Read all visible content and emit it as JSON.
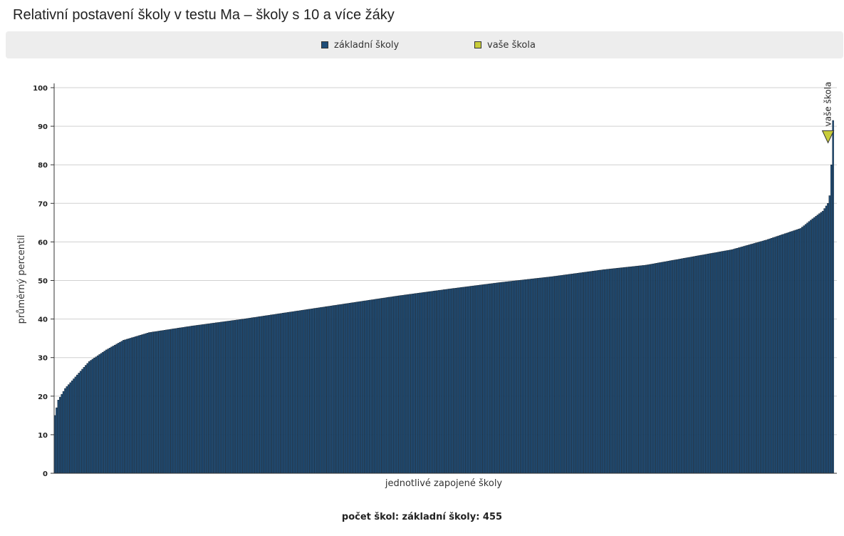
{
  "title": "Relativní postavení školy v testu Ma – školy s 10 a více žáky",
  "legend": [
    {
      "label": "základní školy",
      "color": "#1f4e79",
      "shape": "square"
    },
    {
      "label": "vaše škola",
      "color": "#c8cc3a",
      "shape": "square"
    }
  ],
  "footer": "počet škol: základní školy: 455",
  "chart_data": {
    "type": "bar",
    "ylabel": "průměrný percentil",
    "xlabel": "jednotlivé zapojené školy",
    "ylim": [
      0,
      100
    ],
    "yticks": [
      0,
      10,
      20,
      30,
      40,
      50,
      60,
      70,
      80,
      90,
      100
    ],
    "grid": true,
    "legend_position": "top-center",
    "bar_color": "#1f4e79",
    "marker_color": "#c8cc3a",
    "series": [
      {
        "name": "základní školy",
        "count": 455
      }
    ],
    "curve_keypoints": [
      [
        0,
        15
      ],
      [
        2,
        19
      ],
      [
        6,
        22
      ],
      [
        12,
        25
      ],
      [
        20,
        29
      ],
      [
        30,
        32
      ],
      [
        40,
        34.5
      ],
      [
        55,
        36.5
      ],
      [
        80,
        38.2
      ],
      [
        110,
        40
      ],
      [
        140,
        42
      ],
      [
        170,
        44
      ],
      [
        200,
        46
      ],
      [
        230,
        47.8
      ],
      [
        260,
        49.5
      ],
      [
        290,
        51
      ],
      [
        320,
        52.8
      ],
      [
        345,
        54
      ],
      [
        370,
        56
      ],
      [
        395,
        58
      ],
      [
        415,
        60.5
      ],
      [
        425,
        62
      ],
      [
        435,
        63.5
      ],
      [
        442,
        66
      ],
      [
        448,
        68
      ],
      [
        451,
        70
      ],
      [
        452,
        72
      ],
      [
        453,
        80
      ],
      [
        454,
        91.5
      ]
    ],
    "your_school": {
      "label": "vaše škola",
      "rank": 451,
      "value": 87
    }
  }
}
